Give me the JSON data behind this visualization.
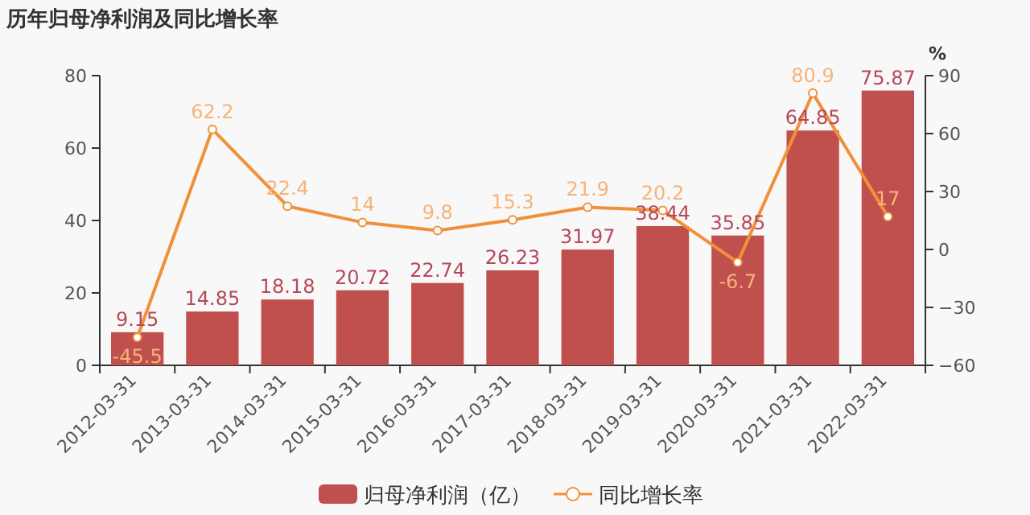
{
  "chart_data": {
    "type": "bar",
    "title": "历年归母净利润及同比增长率",
    "categories": [
      "2012-03-31",
      "2013-03-31",
      "2014-03-31",
      "2015-03-31",
      "2016-03-31",
      "2017-03-31",
      "2018-03-31",
      "2019-03-31",
      "2020-03-31",
      "2021-03-31",
      "2022-03-31"
    ],
    "series": [
      {
        "name": "归母净利润（亿）",
        "color": "#c0504d",
        "values": [
          9.15,
          14.85,
          18.18,
          20.72,
          22.74,
          26.23,
          31.97,
          38.44,
          35.85,
          64.85,
          75.87
        ]
      },
      {
        "name": "同比增长率",
        "type": "line",
        "axis": "y2",
        "color": "#f0913a",
        "marker": "circle",
        "values": [
          -45.5,
          62.2,
          22.4,
          14,
          9.8,
          15.3,
          21.9,
          20.2,
          -6.7,
          80.9,
          17
        ]
      }
    ],
    "ylim": [
      0,
      80
    ],
    "yticks": [
      0,
      20,
      40,
      60,
      80
    ],
    "y2lim": [
      -60,
      90
    ],
    "y2ticks": [
      -60,
      -30,
      0,
      30,
      60,
      90
    ],
    "y2label": "%",
    "data_labels": true,
    "legend": "bottom",
    "grid": false
  }
}
